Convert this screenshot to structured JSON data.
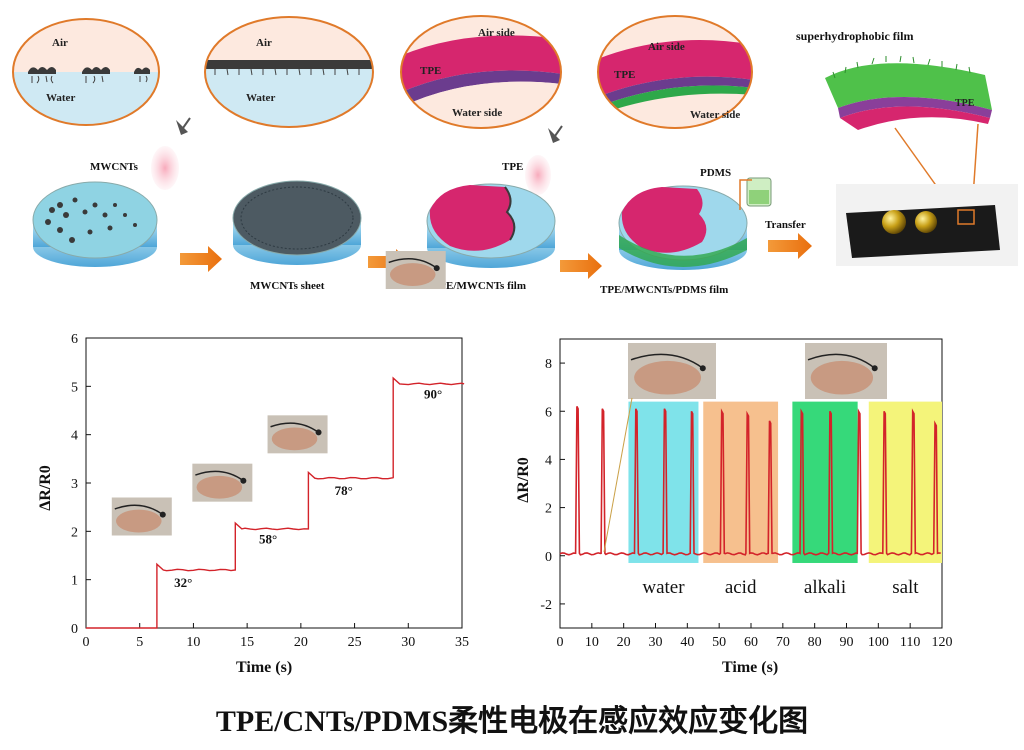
{
  "process": {
    "ovals": [
      {
        "top": "Air",
        "bottom": "Water"
      },
      {
        "top": "Air",
        "bottom": "Water"
      },
      {
        "top": "Air side",
        "mid": "TPE",
        "bottom": "Water side"
      },
      {
        "top": "Air side",
        "mid": "TPE",
        "bottom": "Water side"
      }
    ],
    "film_title": "superhydrophobic film",
    "film_tpe": "TPE",
    "spray1": "MWCNTs",
    "spray2": "TPE",
    "pdms": "PDMS",
    "transfer": "Transfer",
    "dish_labels": [
      "MWCNTs sheet",
      "TPE/MWCNTs film",
      "TPE/MWCNTs/PDMS film"
    ]
  },
  "colors": {
    "trace": "#d3232a",
    "tpe": "#d6266e",
    "water": "#9fd8ec",
    "arrow": "#f0821e"
  },
  "chart_data": [
    {
      "type": "line",
      "xlabel": "Time (s)",
      "ylabel": "ΔR/R0",
      "xlim": [
        0,
        35
      ],
      "ylim": [
        0,
        6
      ],
      "xticks": [
        "0",
        "5",
        "10",
        "15",
        "20",
        "25",
        "30",
        "35"
      ],
      "yticks": [
        "0",
        "1",
        "2",
        "3",
        "4",
        "5",
        "6"
      ],
      "steps": [
        {
          "t": 6.6,
          "v": 1.2,
          "label": "32°"
        },
        {
          "t": 13.9,
          "v": 2.05,
          "label": "58°"
        },
        {
          "t": 20.7,
          "v": 3.1,
          "label": "78°"
        },
        {
          "t": 28.6,
          "v": 5.05,
          "label": "90°"
        }
      ],
      "x_end": 35.2
    },
    {
      "type": "line",
      "xlabel": "Time (s)",
      "ylabel": "ΔR/R0",
      "xlim": [
        0,
        120
      ],
      "ylim": [
        -3,
        9
      ],
      "xticks": [
        "0",
        "10",
        "20",
        "30",
        "40",
        "50",
        "60",
        "70",
        "80",
        "90",
        "100",
        "110",
        "120"
      ],
      "yticks": [
        "-2",
        "0",
        "2",
        "4",
        "6",
        "8"
      ],
      "peaks": [
        {
          "t": 5.5,
          "v": 6.2
        },
        {
          "t": 13.5,
          "v": 6.1
        },
        {
          "t": 24,
          "v": 6.1
        },
        {
          "t": 33,
          "v": 6.1
        },
        {
          "t": 41.5,
          "v": 6.0
        },
        {
          "t": 51,
          "v": 6.0
        },
        {
          "t": 59,
          "v": 5.9
        },
        {
          "t": 66,
          "v": 5.6
        },
        {
          "t": 76,
          "v": 6.0
        },
        {
          "t": 85,
          "v": 6.0
        },
        {
          "t": 94,
          "v": 6.0
        },
        {
          "t": 102,
          "v": 6.0
        },
        {
          "t": 111,
          "v": 6.0
        },
        {
          "t": 118,
          "v": 5.5
        }
      ],
      "regions": [
        {
          "name": "water",
          "from": 21.5,
          "to": 43.5,
          "color": "#7fe3ea"
        },
        {
          "name": "acid",
          "from": 45,
          "to": 68.5,
          "color": "#f6c08e"
        },
        {
          "name": "alkali",
          "from": 73,
          "to": 93.5,
          "color": "#36d97a"
        },
        {
          "name": "salt",
          "from": 97,
          "to": 120,
          "color": "#f4f47a"
        }
      ]
    }
  ],
  "caption": "TPE/CNTs/PDMS柔性电极在感应效应变化图"
}
